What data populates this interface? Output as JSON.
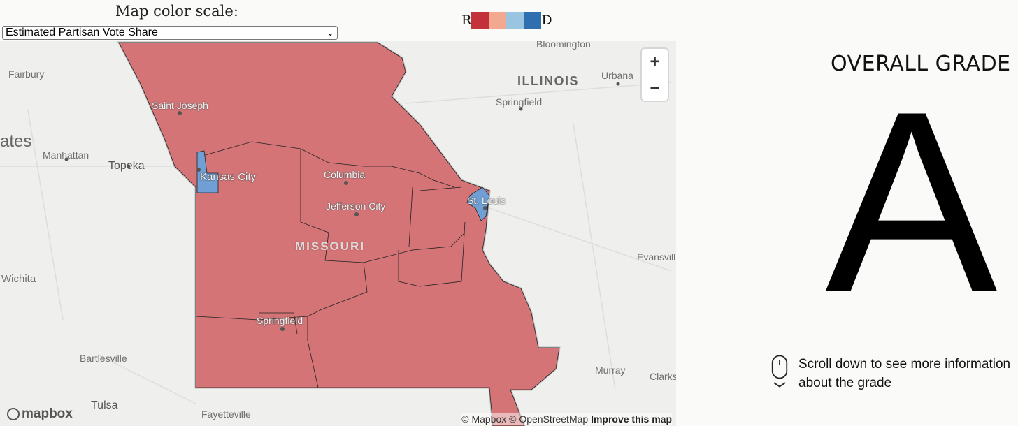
{
  "header": {
    "scale_label": "Map color scale:",
    "scale_select_value": "Estimated Partisan Vote Share",
    "legend_left": "R",
    "legend_right": "D",
    "legend_colors": [
      "#c3313a",
      "#f3a98f",
      "#99c5e1",
      "#2f6fb0"
    ]
  },
  "map": {
    "colors": {
      "republican": "#d47477",
      "democrat": "#6f9fd4",
      "land": "#efefed"
    },
    "labels": {
      "bloomington": "Bloomington",
      "illinois": "ILLINOIS",
      "urbana": "Urbana",
      "springfield_il": "Springfield",
      "fairbury": "Fairbury",
      "saint_joseph": "Saint Joseph",
      "ates": "ates",
      "manhattan": "Manhattan",
      "topeka": "Topeka",
      "kansas_city": "Kansas City",
      "columbia": "Columbia",
      "jefferson_city": "Jefferson City",
      "st_louis": "St. Louis",
      "missouri": "MISSOURI",
      "evansville": "Evansvill",
      "wichita": "Wichita",
      "springfield_mo": "Springfield",
      "bartlesville": "Bartlesville",
      "murray": "Murray",
      "clarks": "Clarks",
      "tulsa": "Tulsa",
      "fayetteville": "Fayetteville"
    },
    "zoom_in": "+",
    "zoom_out": "−",
    "attribution_text": "© Mapbox © OpenStreetMap",
    "attribution_link": "Improve this map",
    "logo_text": "mapbox"
  },
  "grade": {
    "title": "OVERALL GRADE",
    "letter": "A",
    "scroll_hint": "Scroll down to see more information about the grade"
  }
}
